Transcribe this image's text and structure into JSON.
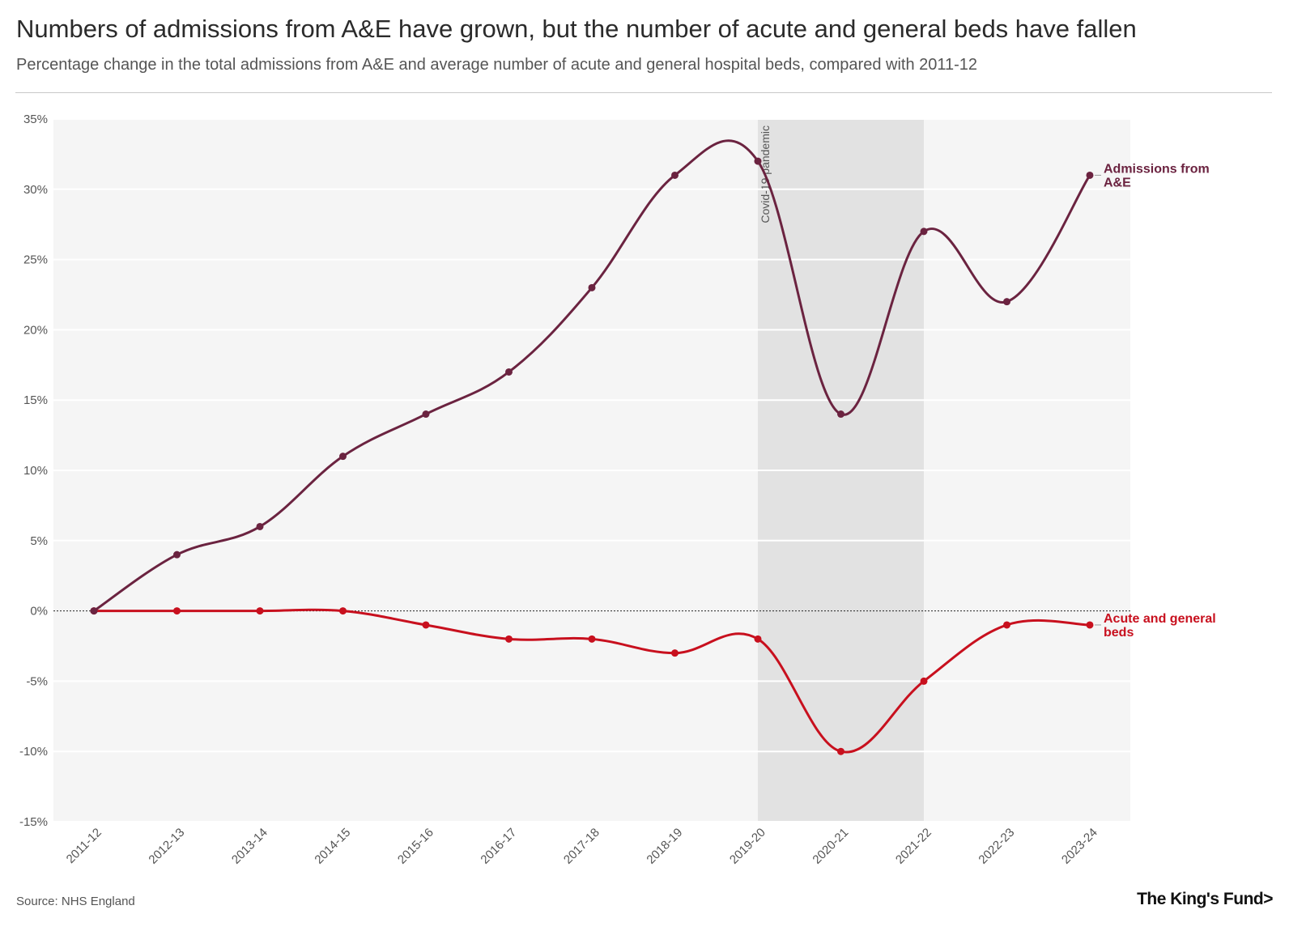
{
  "header": {
    "title": "Numbers of admissions from A&E have grown, but the number of acute and general beds have fallen",
    "subtitle": "Percentage change in the total admissions from A&E and average number of acute and general hospital beds, compared with 2011-12"
  },
  "footer": {
    "source": "Source: NHS England",
    "logo": "The King's Fund>"
  },
  "chart_data": {
    "type": "line",
    "title": "Numbers of admissions from A&E have grown, but the number of acute and general beds have fallen",
    "subtitle": "Percentage change in the total admissions from A&E and average number of acute and general hospital beds, compared with 2011-12",
    "xlabel": "",
    "ylabel": "",
    "categories": [
      "2011-12",
      "2012-13",
      "2013-14",
      "2014-15",
      "2015-16",
      "2016-17",
      "2017-18",
      "2018-19",
      "2019-20",
      "2020-21",
      "2021-22",
      "2022-23",
      "2023-24"
    ],
    "ylim": [
      -15,
      35
    ],
    "yticks": [
      35,
      30,
      25,
      20,
      15,
      10,
      5,
      0,
      -5,
      -10,
      -15
    ],
    "ytick_labels": [
      "35%",
      "30%",
      "25%",
      "20%",
      "15%",
      "10%",
      "5%",
      "0%",
      "-5%",
      "-10%",
      "-15%"
    ],
    "grid": true,
    "zero_line": "dotted",
    "series": [
      {
        "name": "Admissions from A&E",
        "label_lines": [
          "Admissions from",
          "A&E"
        ],
        "color": "#6b2340",
        "values": [
          0,
          4,
          6,
          11,
          14,
          17,
          23,
          31,
          32,
          14,
          27,
          22,
          31
        ]
      },
      {
        "name": "Acute and general beds",
        "label_lines": [
          "Acute and general",
          "beds"
        ],
        "color": "#c8101e",
        "values": [
          0,
          0,
          0,
          0,
          -1,
          -2,
          -2,
          -3,
          -2,
          -10,
          -5,
          -1,
          -1
        ]
      }
    ],
    "annotations": [
      {
        "type": "band",
        "from": "2019-20",
        "to": "2021-22",
        "label": "Covid-19 pandemic",
        "color": "#e2e2e2"
      }
    ],
    "plot_background": "#f5f5f5"
  }
}
